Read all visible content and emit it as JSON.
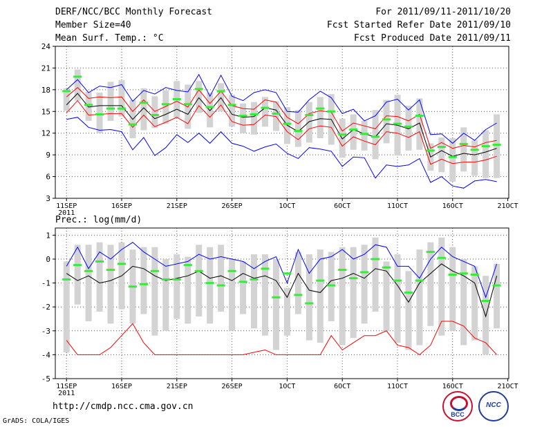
{
  "header": {
    "line1_left": "DERF/NCC/BCC Monthly Forecast",
    "line2_left": "Member Size=40",
    "line3_left": "Mean Surf. Temp.: °C",
    "line1_right": "For 2011/09/11-2011/10/20",
    "line2_right": "Fcst Started Refer Date 2011/09/10",
    "line3_right": "Fcst Produced Date 2011/09/11"
  },
  "footer": {
    "url": "http://cmdp.ncc.cma.gov.cn",
    "credit": "GrADS: COLA/IGES",
    "logo_left_label": "BCC",
    "logo_right_label": "NCC"
  },
  "colors": {
    "box": "#d3d3d3",
    "mean": "#000000",
    "red": "#ff0000",
    "blue": "#0000ff",
    "obs": "#33ee33"
  },
  "chart_data": [
    {
      "type": "line",
      "name": "temperature",
      "ylim": [
        3,
        24
      ],
      "yticks": [
        3,
        6,
        9,
        12,
        15,
        18,
        21,
        24
      ],
      "xlim": [
        1,
        40
      ],
      "x_ticks": [
        {
          "day": 1,
          "label": "11SEP",
          "sub": "2011"
        },
        {
          "day": 6,
          "label": "16SEP"
        },
        {
          "day": 11,
          "label": "21SEP"
        },
        {
          "day": 16,
          "label": "26SEP"
        },
        {
          "day": 21,
          "label": "1OCT"
        },
        {
          "day": 26,
          "label": "6OCT"
        },
        {
          "day": 31,
          "label": "11OCT"
        },
        {
          "day": 36,
          "label": "16OCT"
        },
        {
          "day": 41,
          "label": "21OCT"
        }
      ],
      "days": [
        1,
        2,
        3,
        4,
        5,
        6,
        7,
        8,
        9,
        10,
        11,
        12,
        13,
        14,
        15,
        16,
        17,
        18,
        19,
        20,
        21,
        22,
        23,
        24,
        25,
        26,
        27,
        28,
        29,
        30,
        31,
        32,
        33,
        34,
        35,
        36,
        37,
        38,
        39,
        40
      ],
      "mean": [
        15.9,
        17.5,
        15.6,
        15.8,
        15.8,
        15.8,
        13.9,
        15.5,
        14.0,
        14.6,
        15.3,
        14.6,
        16.9,
        15.1,
        16.9,
        14.6,
        14.2,
        14.3,
        15.5,
        15.2,
        13.1,
        12.2,
        13.6,
        14.0,
        13.9,
        11.2,
        12.5,
        11.9,
        11.5,
        13.3,
        13.1,
        12.6,
        13.4,
        8.7,
        9.6,
        8.8,
        9.2,
        9.0,
        9.4,
        9.9
      ],
      "red_upper": [
        17.0,
        18.3,
        16.8,
        17.0,
        16.9,
        17.0,
        15.0,
        16.6,
        15.0,
        15.7,
        16.4,
        15.6,
        18.0,
        16.1,
        17.8,
        15.8,
        15.4,
        15.3,
        16.6,
        16.3,
        14.2,
        13.3,
        14.7,
        15.1,
        14.9,
        12.3,
        13.4,
        13.0,
        12.6,
        14.4,
        14.3,
        13.7,
        14.6,
        9.9,
        10.7,
        9.9,
        10.3,
        10.1,
        10.7,
        11.0
      ],
      "red_lower": [
        14.8,
        16.5,
        14.5,
        14.6,
        14.7,
        14.7,
        12.8,
        14.5,
        12.9,
        13.5,
        14.2,
        13.3,
        15.8,
        14.2,
        15.9,
        13.6,
        13.1,
        13.2,
        14.5,
        14.3,
        12.2,
        11.1,
        12.6,
        13.0,
        12.8,
        10.2,
        11.5,
        10.9,
        10.4,
        12.2,
        12.0,
        11.4,
        12.2,
        7.7,
        8.4,
        7.8,
        8.0,
        8.0,
        8.3,
        8.8
      ],
      "blue_upper": [
        18.0,
        19.4,
        17.6,
        18.5,
        18.3,
        18.7,
        16.4,
        17.9,
        17.4,
        18.3,
        17.9,
        17.7,
        20.1,
        17.1,
        20.0,
        17.1,
        16.5,
        17.6,
        18.0,
        17.6,
        15.0,
        14.9,
        16.6,
        17.8,
        16.9,
        14.7,
        15.3,
        13.7,
        14.4,
        16.3,
        16.7,
        15.2,
        16.6,
        11.8,
        11.9,
        10.6,
        12.0,
        11.0,
        12.5,
        13.4
      ],
      "blue_lower": [
        13.9,
        14.2,
        12.8,
        12.4,
        12.5,
        12.2,
        9.7,
        11.4,
        8.9,
        10.0,
        11.8,
        10.7,
        12.0,
        10.6,
        12.2,
        10.6,
        10.2,
        9.5,
        10.1,
        10.5,
        9.2,
        8.5,
        10.0,
        9.8,
        9.5,
        7.4,
        8.7,
        8.6,
        5.8,
        7.6,
        7.4,
        7.6,
        8.5,
        5.2,
        6.0,
        4.7,
        4.4,
        5.4,
        5.6,
        5.3
      ],
      "box_top": [
        18.2,
        20.8,
        17.7,
        17.6,
        19.1,
        19.3,
        16.6,
        18.2,
        17.1,
        17.9,
        19.2,
        18.7,
        19.2,
        17.6,
        18.9,
        17.3,
        16.1,
        16.3,
        17.0,
        16.4,
        15.6,
        15.2,
        16.3,
        17.0,
        17.4,
        14.0,
        14.6,
        13.7,
        15.2,
        16.6,
        17.3,
        15.8,
        16.8,
        10.6,
        11.4,
        11.3,
        12.8,
        11.0,
        12.4,
        14.6
      ],
      "box_bottom": [
        15.1,
        16.5,
        13.7,
        12.0,
        13.7,
        14.3,
        11.3,
        12.4,
        12.7,
        13.3,
        14.1,
        12.6,
        14.8,
        12.8,
        15.0,
        12.9,
        12.0,
        11.8,
        12.9,
        12.3,
        10.5,
        10.1,
        10.7,
        11.3,
        10.4,
        8.6,
        9.7,
        9.6,
        8.4,
        10.6,
        8.9,
        9.6,
        9.7,
        6.8,
        6.6,
        5.3,
        6.7,
        6.1,
        5.8,
        5.8
      ],
      "obs": [
        17.8,
        19.8,
        15.9,
        14.6,
        15.4,
        15.4,
        13.2,
        16.2,
        14.5,
        16.0,
        16.7,
        16.0,
        18.1,
        15.6,
        17.8,
        15.9,
        14.4,
        14.6,
        15.5,
        14.7,
        13.3,
        12.3,
        14.5,
        15.4,
        15.0,
        11.8,
        12.5,
        11.9,
        11.5,
        13.9,
        13.3,
        12.9,
        14.4,
        9.6,
        10.1,
        8.7,
        10.5,
        9.7,
        10.2,
        10.4
      ]
    },
    {
      "type": "line",
      "name": "precipitation",
      "title": "Prec.: log(mm/d)",
      "ylim": [
        -5,
        1.3
      ],
      "yticks": [
        -5,
        -4,
        -3,
        -2,
        -1,
        0,
        1
      ],
      "xlim": [
        1,
        40
      ],
      "x_ticks": [
        {
          "day": 1,
          "label": "11SEP",
          "sub": "2011"
        },
        {
          "day": 6,
          "label": "16SEP"
        },
        {
          "day": 11,
          "label": "21SEP"
        },
        {
          "day": 16,
          "label": "26SEP"
        },
        {
          "day": 21,
          "label": "1OCT"
        },
        {
          "day": 26,
          "label": "6OCT"
        },
        {
          "day": 31,
          "label": "11OCT"
        },
        {
          "day": 36,
          "label": "16OCT"
        },
        {
          "day": 41,
          "label": "21OCT"
        }
      ],
      "days": [
        1,
        2,
        3,
        4,
        5,
        6,
        7,
        8,
        9,
        10,
        11,
        12,
        13,
        14,
        15,
        16,
        17,
        18,
        19,
        20,
        21,
        22,
        23,
        24,
        25,
        26,
        27,
        28,
        29,
        30,
        31,
        32,
        33,
        34,
        35,
        36,
        37,
        38,
        39,
        40
      ],
      "mean": [
        -0.6,
        -0.9,
        -0.7,
        -1.0,
        -0.9,
        -0.7,
        -0.3,
        -0.4,
        -0.7,
        -0.9,
        -0.8,
        -0.7,
        -0.5,
        -0.8,
        -0.7,
        -0.9,
        -0.6,
        -0.8,
        -0.7,
        -0.9,
        -1.6,
        -0.6,
        -1.3,
        -1.4,
        -0.9,
        -0.8,
        -0.6,
        -0.8,
        -0.4,
        -0.5,
        -1.1,
        -1.8,
        -1.0,
        -0.6,
        -0.2,
        -0.5,
        -0.7,
        -1.0,
        -2.4,
        -0.7
      ],
      "red": [
        -3.4,
        -4.0,
        -4.0,
        -4.0,
        -3.7,
        -3.2,
        -2.7,
        -3.5,
        -4.0,
        -4.0,
        -4.0,
        -4.0,
        -4.0,
        -4.0,
        -4.0,
        -4.0,
        -4.0,
        -3.9,
        -3.8,
        -4.0,
        -4.0,
        -4.0,
        -4.0,
        -4.0,
        -3.2,
        -3.8,
        -3.5,
        -3.2,
        -3.2,
        -3.0,
        -3.6,
        -3.7,
        -4.0,
        -3.6,
        -2.6,
        -2.6,
        -2.8,
        -3.3,
        -3.5,
        -4.0
      ],
      "blue_upper": [
        -0.3,
        0.5,
        -0.4,
        0.3,
        0.0,
        0.4,
        0.7,
        0.3,
        0.0,
        -0.3,
        -0.2,
        -0.1,
        0.2,
        0.0,
        0.1,
        0.0,
        -0.1,
        -0.4,
        -0.1,
        0.1,
        -1.0,
        0.4,
        -0.6,
        0.0,
        0.1,
        0.4,
        0.0,
        0.2,
        0.6,
        0.5,
        -0.3,
        -0.3,
        -0.8,
        0.0,
        0.5,
        0.1,
        -0.1,
        -0.3,
        -1.6,
        -0.2
      ],
      "box_top": [
        -0.1,
        0.6,
        0.6,
        0.7,
        0.6,
        0.7,
        0.4,
        0.5,
        0.5,
        0.0,
        0.2,
        0.1,
        0.6,
        0.5,
        0.6,
        0.0,
        -0.1,
        0.2,
        0.2,
        0.0,
        -1.2,
        0.3,
        0.2,
        0.4,
        0.3,
        0.5,
        0.5,
        0.6,
        0.9,
        -0.1,
        0.2,
        -0.5,
        0.4,
        0.7,
        0.9,
        0.5,
        0.0,
        -0.3,
        -0.7,
        -0.2
      ],
      "box_bottom": [
        -3.9,
        -1.9,
        -2.6,
        -2.2,
        -2.7,
        -2.1,
        -2.7,
        -2.3,
        -3.2,
        -3.0,
        -2.5,
        -2.7,
        -2.4,
        -2.7,
        -2.2,
        -3.0,
        -2.3,
        -2.9,
        -3.2,
        -3.8,
        -3.2,
        -2.3,
        -3.4,
        -3.5,
        -2.6,
        -3.6,
        -3.3,
        -2.7,
        -2.2,
        -3.0,
        -3.5,
        -3.8,
        -3.6,
        -2.8,
        -3.2,
        -3.0,
        -3.6,
        -3.4,
        -4.0,
        -2.9
      ],
      "obs": [
        -0.85,
        -0.25,
        -0.5,
        -0.1,
        -0.45,
        -0.2,
        -1.15,
        -1.05,
        -0.5,
        -0.85,
        -0.85,
        -0.25,
        -0.5,
        -1.0,
        -1.1,
        -0.5,
        -0.95,
        -0.85,
        -0.4,
        -1.6,
        -0.6,
        -1.5,
        -1.85,
        -0.9,
        -1.1,
        -0.45,
        -0.8,
        -0.55,
        0.0,
        -0.35,
        -0.9,
        -1.4,
        -0.9,
        0.3,
        0.05,
        -0.65,
        -0.6,
        -0.65,
        -1.75,
        -1.1
      ]
    }
  ]
}
